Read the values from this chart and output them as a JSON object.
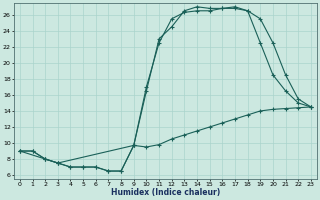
{
  "xlabel": "Humidex (Indice chaleur)",
  "xlim": [
    -0.5,
    23.5
  ],
  "ylim": [
    5.5,
    27.5
  ],
  "xticks": [
    0,
    1,
    2,
    3,
    4,
    5,
    6,
    7,
    8,
    9,
    10,
    11,
    12,
    13,
    14,
    15,
    16,
    17,
    18,
    19,
    20,
    21,
    22,
    23
  ],
  "yticks": [
    6,
    8,
    10,
    12,
    14,
    16,
    18,
    20,
    22,
    24,
    26
  ],
  "bg_color": "#cce8e0",
  "grid_color": "#aad4cc",
  "line_color": "#1a6058",
  "line1_x": [
    0,
    1,
    2,
    3,
    4,
    5,
    6,
    7,
    8,
    9,
    10,
    11,
    12,
    13,
    14,
    15,
    16,
    17,
    18,
    19,
    20,
    21,
    22,
    23
  ],
  "line1_y": [
    9.0,
    9.0,
    8.0,
    7.5,
    7.0,
    7.0,
    7.0,
    6.5,
    6.5,
    9.7,
    9.5,
    9.8,
    10.5,
    11.0,
    11.5,
    12.0,
    12.5,
    13.0,
    13.5,
    14.0,
    14.2,
    14.3,
    14.4,
    14.5
  ],
  "line2_x": [
    0,
    1,
    2,
    3,
    4,
    5,
    6,
    7,
    8,
    9,
    10,
    11,
    12,
    13,
    14,
    15,
    16,
    17,
    18,
    19,
    20,
    21,
    22,
    23
  ],
  "line2_y": [
    9.0,
    9.0,
    8.0,
    7.5,
    7.0,
    7.0,
    7.0,
    6.5,
    6.5,
    9.7,
    17.0,
    22.5,
    25.5,
    26.3,
    26.5,
    26.5,
    26.8,
    27.0,
    26.5,
    22.5,
    18.5,
    16.5,
    15.0,
    14.5
  ],
  "line3_x": [
    0,
    2,
    3,
    9,
    10,
    11,
    12,
    13,
    14,
    15,
    16,
    17,
    18,
    19,
    20,
    21,
    22,
    23
  ],
  "line3_y": [
    9.0,
    8.0,
    7.5,
    9.7,
    16.5,
    23.0,
    24.5,
    26.5,
    27.0,
    26.8,
    26.8,
    26.8,
    26.5,
    25.5,
    22.5,
    18.5,
    15.5,
    14.5
  ]
}
